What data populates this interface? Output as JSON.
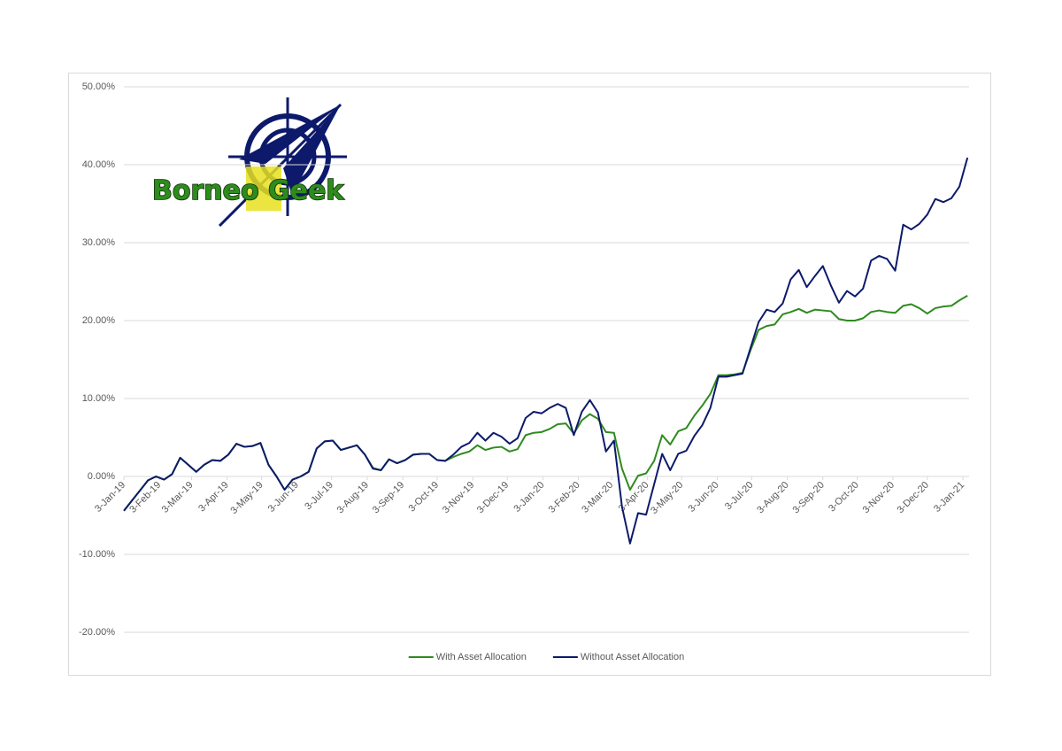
{
  "logo": {
    "text": "Borneo Geek"
  },
  "chart_data": {
    "type": "line",
    "x": [
      "3-Jan-19",
      "10-Jan-19",
      "17-Jan-19",
      "24-Jan-19",
      "31-Jan-19",
      "7-Feb-19",
      "14-Feb-19",
      "21-Feb-19",
      "28-Feb-19",
      "7-Mar-19",
      "14-Mar-19",
      "21-Mar-19",
      "28-Mar-19",
      "4-Apr-19",
      "11-Apr-19",
      "18-Apr-19",
      "25-Apr-19",
      "2-May-19",
      "9-May-19",
      "16-May-19",
      "23-May-19",
      "30-May-19",
      "6-Jun-19",
      "13-Jun-19",
      "20-Jun-19",
      "27-Jun-19",
      "4-Jul-19",
      "11-Jul-19",
      "18-Jul-19",
      "25-Jul-19",
      "1-Aug-19",
      "8-Aug-19",
      "15-Aug-19",
      "22-Aug-19",
      "29-Aug-19",
      "5-Sep-19",
      "12-Sep-19",
      "19-Sep-19",
      "26-Sep-19",
      "3-Oct-19",
      "10-Oct-19",
      "17-Oct-19",
      "24-Oct-19",
      "31-Oct-19",
      "7-Nov-19",
      "14-Nov-19",
      "21-Nov-19",
      "28-Nov-19",
      "5-Dec-19",
      "12-Dec-19",
      "19-Dec-19",
      "26-Dec-19",
      "2-Jan-20",
      "9-Jan-20",
      "16-Jan-20",
      "23-Jan-20",
      "30-Jan-20",
      "6-Feb-20",
      "13-Feb-20",
      "20-Feb-20",
      "27-Feb-20",
      "5-Mar-20",
      "12-Mar-20",
      "19-Mar-20",
      "26-Mar-20",
      "2-Apr-20",
      "9-Apr-20",
      "16-Apr-20",
      "23-Apr-20",
      "30-Apr-20",
      "7-May-20",
      "14-May-20",
      "21-May-20",
      "28-May-20",
      "4-Jun-20",
      "11-Jun-20",
      "18-Jun-20",
      "25-Jun-20",
      "2-Jul-20",
      "9-Jul-20",
      "16-Jul-20",
      "23-Jul-20",
      "30-Jul-20",
      "6-Aug-20",
      "13-Aug-20",
      "20-Aug-20",
      "27-Aug-20",
      "3-Sep-20",
      "10-Sep-20",
      "17-Sep-20",
      "24-Sep-20",
      "1-Oct-20",
      "8-Oct-20",
      "15-Oct-20",
      "22-Oct-20",
      "29-Oct-20",
      "5-Nov-20",
      "12-Nov-20",
      "19-Nov-20",
      "26-Nov-20",
      "3-Dec-20",
      "10-Dec-20",
      "17-Dec-20",
      "24-Dec-20",
      "31-Dec-20",
      "7-Jan-21"
    ],
    "series": [
      {
        "name": "With Asset Allocation",
        "color": "#2e8b1e",
        "values": [
          -4.4,
          -3.1,
          -1.8,
          -0.5,
          0.0,
          -0.4,
          0.3,
          2.4,
          1.5,
          0.6,
          1.5,
          2.1,
          2.0,
          2.8,
          4.2,
          3.8,
          3.9,
          4.3,
          1.5,
          0.0,
          -1.7,
          -0.4,
          0.0,
          0.6,
          3.6,
          4.5,
          4.6,
          3.4,
          3.7,
          4.0,
          2.8,
          1.1,
          0.8,
          2.2,
          1.7,
          2.1,
          2.8,
          2.9,
          2.9,
          2.1,
          2.0,
          2.5,
          2.9,
          3.2,
          4.0,
          3.4,
          3.7,
          3.8,
          3.2,
          3.5,
          5.3,
          5.6,
          5.7,
          6.1,
          6.7,
          6.8,
          5.5,
          7.2,
          8.0,
          7.4,
          5.7,
          5.6,
          1.0,
          -1.7,
          0.1,
          0.4,
          2.0,
          5.3,
          4.1,
          5.8,
          6.2,
          7.8,
          9.1,
          10.6,
          13.0,
          13.0,
          13.1,
          13.3,
          16.2,
          18.8,
          19.3,
          19.5,
          20.8,
          21.1,
          21.5,
          21.0,
          21.4,
          21.3,
          21.2,
          20.2,
          20.0,
          20.0,
          20.3,
          21.1,
          21.3,
          21.1,
          21.0,
          21.9,
          22.1,
          21.6,
          20.9,
          21.6,
          21.8,
          21.9,
          22.6,
          23.2
        ]
      },
      {
        "name": "Without Asset Allocation",
        "color": "#0d1a6b",
        "values": [
          -4.4,
          -3.1,
          -1.8,
          -0.5,
          0.0,
          -0.4,
          0.3,
          2.4,
          1.5,
          0.6,
          1.5,
          2.1,
          2.0,
          2.8,
          4.2,
          3.8,
          3.9,
          4.3,
          1.5,
          0.0,
          -1.7,
          -0.4,
          0.0,
          0.6,
          3.6,
          4.5,
          4.6,
          3.4,
          3.7,
          4.0,
          2.8,
          1.0,
          0.8,
          2.2,
          1.7,
          2.1,
          2.8,
          2.9,
          2.9,
          2.1,
          2.0,
          2.8,
          3.8,
          4.3,
          5.6,
          4.6,
          5.6,
          5.1,
          4.2,
          4.9,
          7.5,
          8.3,
          8.1,
          8.8,
          9.3,
          8.8,
          5.3,
          8.3,
          9.8,
          8.2,
          3.2,
          4.6,
          -3.9,
          -8.6,
          -4.7,
          -4.9,
          -1.0,
          2.9,
          0.8,
          2.9,
          3.3,
          5.2,
          6.6,
          8.8,
          12.8,
          12.8,
          13.0,
          13.2,
          16.5,
          19.8,
          21.4,
          21.1,
          22.2,
          25.3,
          26.5,
          24.3,
          25.7,
          27.0,
          24.5,
          22.3,
          23.8,
          23.1,
          24.1,
          27.7,
          28.3,
          27.9,
          26.4,
          32.3,
          31.7,
          32.4,
          33.6,
          35.6,
          35.2,
          35.7,
          37.2,
          40.9
        ]
      }
    ],
    "ylim": [
      -20,
      50
    ],
    "yticks": [
      {
        "value": -20,
        "label": "-20.00%"
      },
      {
        "value": -10,
        "label": "-10.00%"
      },
      {
        "value": 0,
        "label": "0.00%"
      },
      {
        "value": 10,
        "label": "10.00%"
      },
      {
        "value": 20,
        "label": "20.00%"
      },
      {
        "value": 30,
        "label": "30.00%"
      },
      {
        "value": 40,
        "label": "40.00%"
      },
      {
        "value": 50,
        "label": "50.00%"
      }
    ],
    "xticks": [
      "3-Jan-19",
      "3-Feb-19",
      "3-Mar-19",
      "3-Apr-19",
      "3-May-19",
      "3-Jun-19",
      "3-Jul-19",
      "3-Aug-19",
      "3-Sep-19",
      "3-Oct-19",
      "3-Nov-19",
      "3-Dec-19",
      "3-Jan-20",
      "3-Feb-20",
      "3-Mar-20",
      "3-Apr-20",
      "3-May-20",
      "3-Jun-20",
      "3-Jul-20",
      "3-Aug-20",
      "3-Sep-20",
      "3-Oct-20",
      "3-Nov-20",
      "3-Dec-20",
      "3-Jan-21"
    ],
    "grid": true,
    "legend": "bottom"
  }
}
